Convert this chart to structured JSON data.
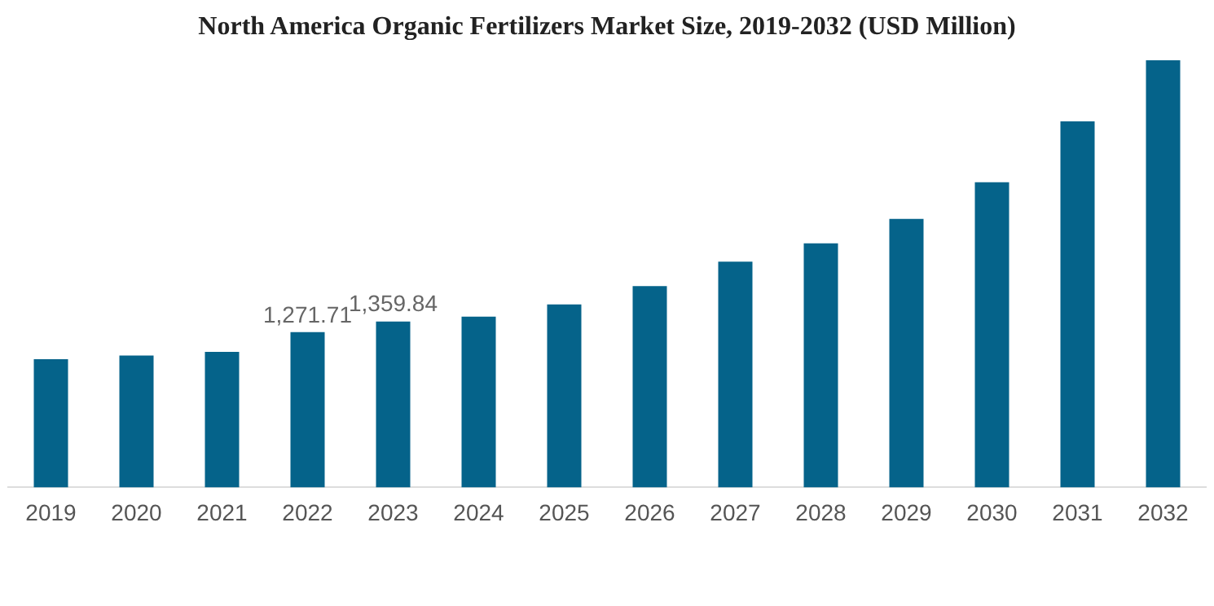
{
  "chart_data": {
    "type": "bar",
    "title": "North America Organic Fertilizers Market Size, 2019-2032 (USD Million)",
    "categories": [
      "2019",
      "2020",
      "2021",
      "2022",
      "2023",
      "2024",
      "2025",
      "2026",
      "2027",
      "2028",
      "2029",
      "2030",
      "2031",
      "2032"
    ],
    "values": [
      1050,
      1080,
      1110,
      1271.71,
      1359.84,
      1400,
      1500,
      1650,
      1850,
      2000,
      2200,
      2500,
      3000,
      3500
    ],
    "value_labels": [
      null,
      null,
      null,
      "1,271.71",
      "1,359.84",
      null,
      null,
      null,
      null,
      null,
      null,
      null,
      null,
      null
    ],
    "color": "#05638a",
    "tick_labels": "x",
    "grid": false,
    "legend": false
  }
}
